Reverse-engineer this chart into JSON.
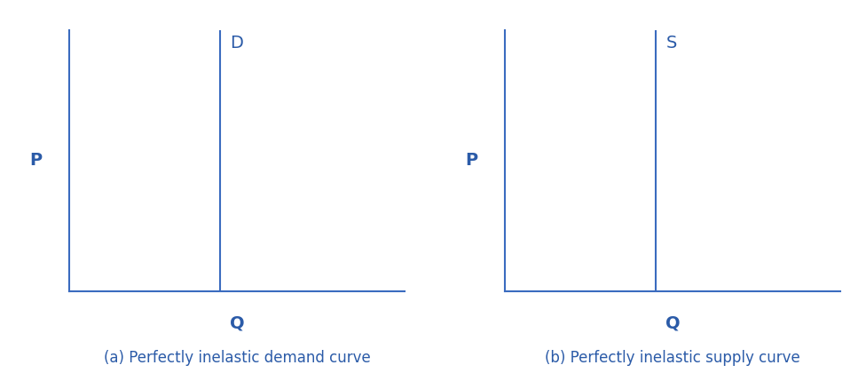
{
  "background_color": "#ffffff",
  "axis_color": "#3a6bbf",
  "curve_color": "#3a6bbf",
  "label_color": "#2b5ba8",
  "text_color": "#2b5ba8",
  "panel_a": {
    "title": "(a) Perfectly inelastic demand curve",
    "p_label": "P",
    "q_label": "Q",
    "curve_label": "D",
    "vertical_line_x": 0.45,
    "xlim": [
      0,
      1
    ],
    "ylim": [
      0,
      1
    ]
  },
  "panel_b": {
    "title": "(b) Perfectly inelastic supply curve",
    "p_label": "P",
    "q_label": "Q",
    "curve_label": "S",
    "vertical_line_x": 0.45,
    "xlim": [
      0,
      1
    ],
    "ylim": [
      0,
      1
    ]
  },
  "axis_linewidth": 1.5,
  "curve_linewidth": 1.5,
  "p_label_fontsize": 14,
  "q_label_fontsize": 14,
  "curve_label_fontsize": 14,
  "title_fontsize": 12
}
